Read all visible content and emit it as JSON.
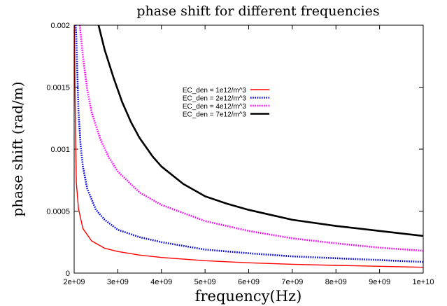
{
  "chart_data": {
    "type": "line",
    "title": "phase shift for different frequencies",
    "xlabel": "frequency(Hz)",
    "ylabel": "phase shift (rad/m)",
    "xlim": [
      2000000000,
      10000000000
    ],
    "ylim": [
      0,
      0.002
    ],
    "x_ticks": [
      2000000000,
      3000000000,
      4000000000,
      5000000000,
      6000000000,
      7000000000,
      8000000000,
      9000000000,
      10000000000
    ],
    "x_tick_labels": [
      "2e+09",
      "3e+09",
      "4e+09",
      "5e+09",
      "6e+09",
      "7e+09",
      "8e+09",
      "9e+09",
      "1e+10"
    ],
    "y_ticks": [
      0,
      0.0005,
      0.001,
      0.0015,
      0.002
    ],
    "y_tick_labels": [
      "0",
      "0.0005",
      "0.001",
      "0.0015",
      "0.002"
    ],
    "grid": false,
    "legend_position": "top-center",
    "series": [
      {
        "name": "EC_den = 1e12/m^3",
        "color": "#ff0000",
        "style": "solid",
        "x": [
          2000000000,
          2030000000,
          2050000000,
          2100000000,
          2200000000,
          2400000000,
          2700000000,
          3000000000,
          3500000000,
          4000000000,
          5000000000,
          6000000000,
          7000000000,
          8000000000,
          9000000000,
          10000000000
        ],
        "y": [
          0.0022,
          0.00115,
          0.00073,
          0.00052,
          0.00036,
          0.00026,
          0.0002,
          0.000174,
          0.000145,
          0.000126,
          0.0001,
          8.3e-05,
          7.1e-05,
          6.2e-05,
          5.5e-05,
          4.7e-05
        ]
      },
      {
        "name": "EC_den = 2e12/m^3",
        "color": "#0000dd",
        "style": "dotted",
        "x": [
          2000000000,
          2050000000,
          2100000000,
          2150000000,
          2200000000,
          2300000000,
          2500000000,
          2700000000,
          3000000000,
          3500000000,
          4000000000,
          5000000000,
          6000000000,
          7000000000,
          8000000000,
          9000000000,
          10000000000
        ],
        "y": [
          0.0022,
          0.0019,
          0.0013,
          0.00102,
          0.00086,
          0.00068,
          0.00051,
          0.00043,
          0.00035,
          0.00029,
          0.00025,
          0.00019,
          0.00016,
          0.000135,
          0.00012,
          0.000105,
          9e-05
        ]
      },
      {
        "name": "EC_den = 4e12/m^3",
        "color": "#ff00ff",
        "style": "dotted",
        "x": [
          2130000000,
          2200000000,
          2300000000,
          2400000000,
          2600000000,
          2800000000,
          3000000000,
          3500000000,
          4000000000,
          5000000000,
          6000000000,
          7000000000,
          8000000000,
          9000000000,
          10000000000
        ],
        "y": [
          0.002,
          0.00175,
          0.00148,
          0.0013,
          0.00108,
          0.00093,
          0.00082,
          0.00065,
          0.00055,
          0.00042,
          0.00034,
          0.00028,
          0.00024,
          0.000205,
          0.00018
        ]
      },
      {
        "name": "EC_den = 7e12/m^3",
        "color": "#000000",
        "style": "solid",
        "x": [
          2560000000,
          2700000000,
          2900000000,
          3100000000,
          3300000000,
          3500000000,
          3800000000,
          4000000000,
          4500000000,
          5000000000,
          5500000000,
          6000000000,
          7000000000,
          8000000000,
          9000000000,
          10000000000
        ],
        "y": [
          0.002,
          0.0018,
          0.00158,
          0.00138,
          0.00122,
          0.00109,
          0.00094,
          0.00086,
          0.00072,
          0.00062,
          0.00056,
          0.00051,
          0.00043,
          0.00038,
          0.00034,
          0.0003
        ]
      }
    ]
  }
}
